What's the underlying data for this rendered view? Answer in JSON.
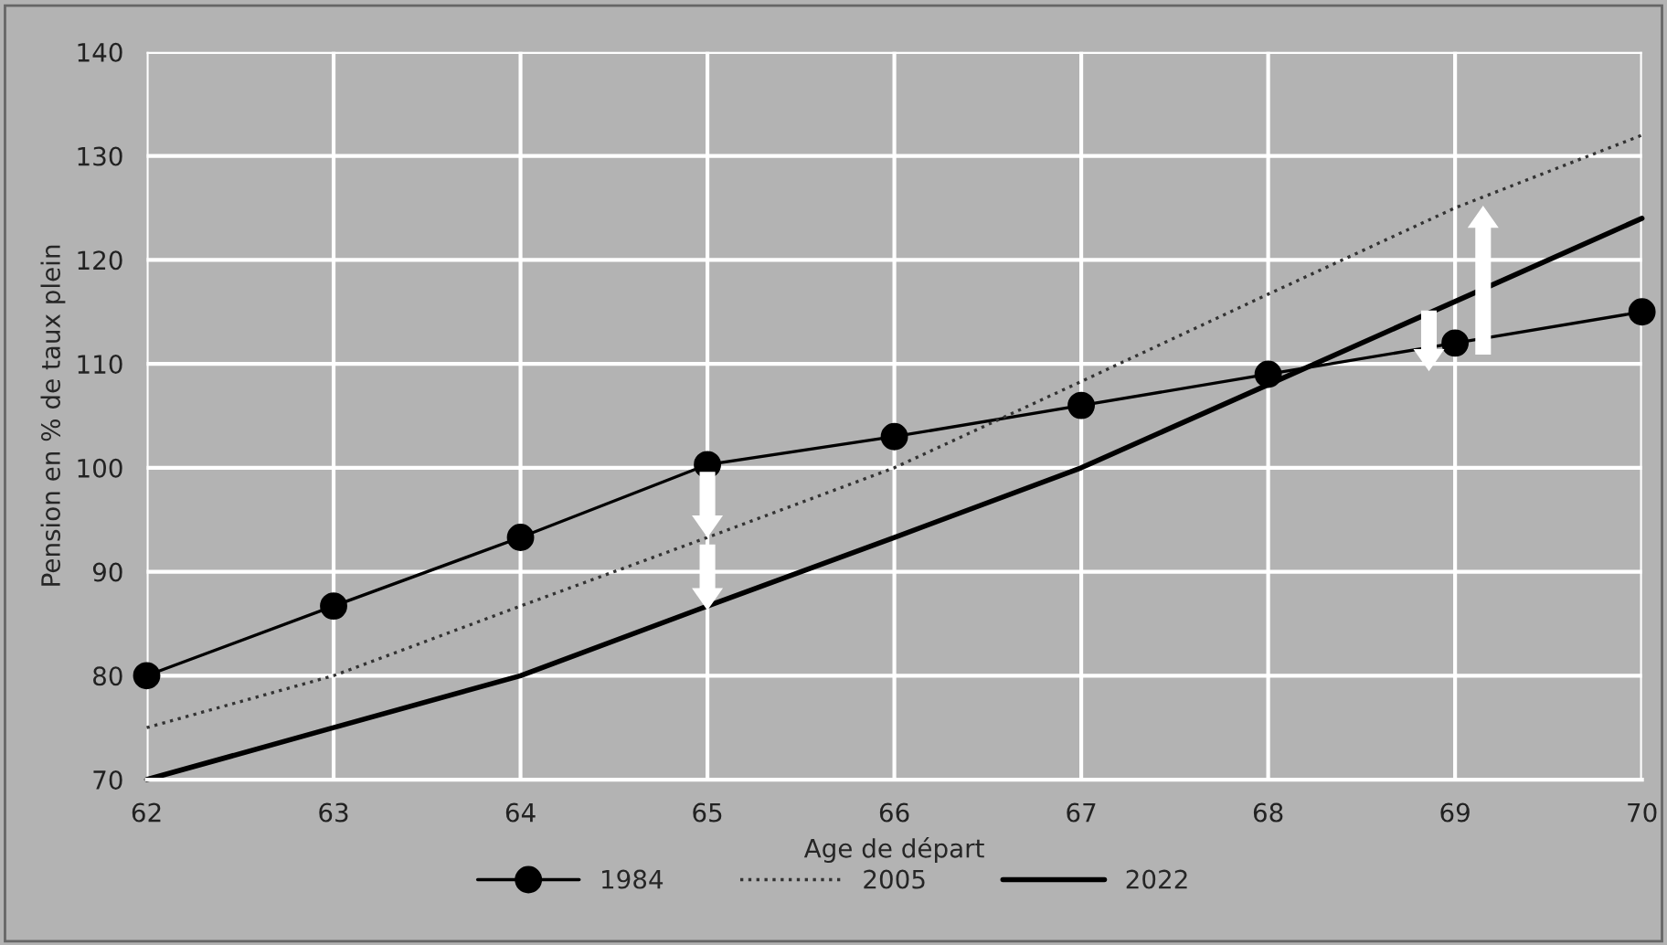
{
  "chart_data": {
    "type": "line",
    "xlabel": "Age de départ",
    "ylabel": "Pension en % de taux plein",
    "x": [
      62,
      63,
      64,
      65,
      66,
      67,
      68,
      69,
      70
    ],
    "series": [
      {
        "name": "1984",
        "color": "#000000",
        "marker": "circle",
        "line_style": "solid",
        "values": [
          80,
          86.7,
          93.3,
          100.3,
          103,
          106,
          109,
          112,
          115
        ]
      },
      {
        "name": "2005",
        "color": "#333333",
        "marker": "none",
        "line_style": "dotted",
        "values": [
          75,
          80,
          86.7,
          93.3,
          100,
          108.3,
          116.7,
          125,
          132
        ]
      },
      {
        "name": "2022",
        "color": "#000000",
        "marker": "none",
        "line_style": "solid",
        "values": [
          70,
          75,
          80,
          86.7,
          93.3,
          100,
          108,
          116,
          124
        ]
      }
    ],
    "xlim": [
      62,
      70
    ],
    "xticks": [
      62,
      63,
      64,
      65,
      66,
      67,
      68,
      69,
      70
    ],
    "ylim": [
      70,
      140
    ],
    "yticks": [
      70,
      80,
      90,
      100,
      110,
      120,
      130,
      140
    ],
    "grid": true,
    "legend": "bottom"
  }
}
